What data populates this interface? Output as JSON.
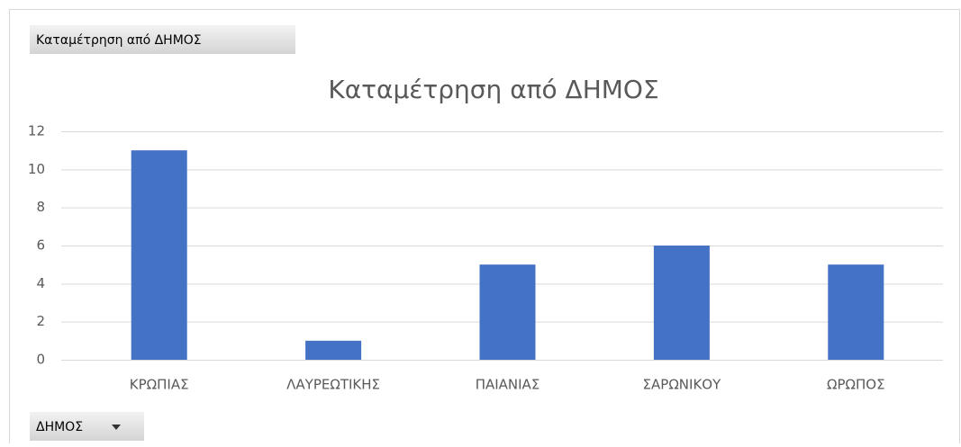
{
  "buttons": {
    "value_field": "Καταμέτρηση από ΔΗΜΟΣ",
    "axis_field": "ΔΗΜΟΣ"
  },
  "chart_data": {
    "type": "bar",
    "title": "Καταμέτρηση από ΔΗΜΟΣ",
    "categories": [
      "ΚΡΩΠΙΑΣ",
      "ΛΑΥΡΕΩΤΙΚΗΣ",
      "ΠΑΙΑΝΙΑΣ",
      "ΣΑΡΩΝΙΚΟΥ",
      "ΩΡΩΠΟΣ"
    ],
    "values": [
      11,
      1,
      5,
      6,
      5
    ],
    "color": "#4472c4",
    "ylim": [
      0,
      12
    ],
    "yticks": [
      0,
      2,
      4,
      6,
      8,
      10,
      12
    ],
    "grid": true
  }
}
